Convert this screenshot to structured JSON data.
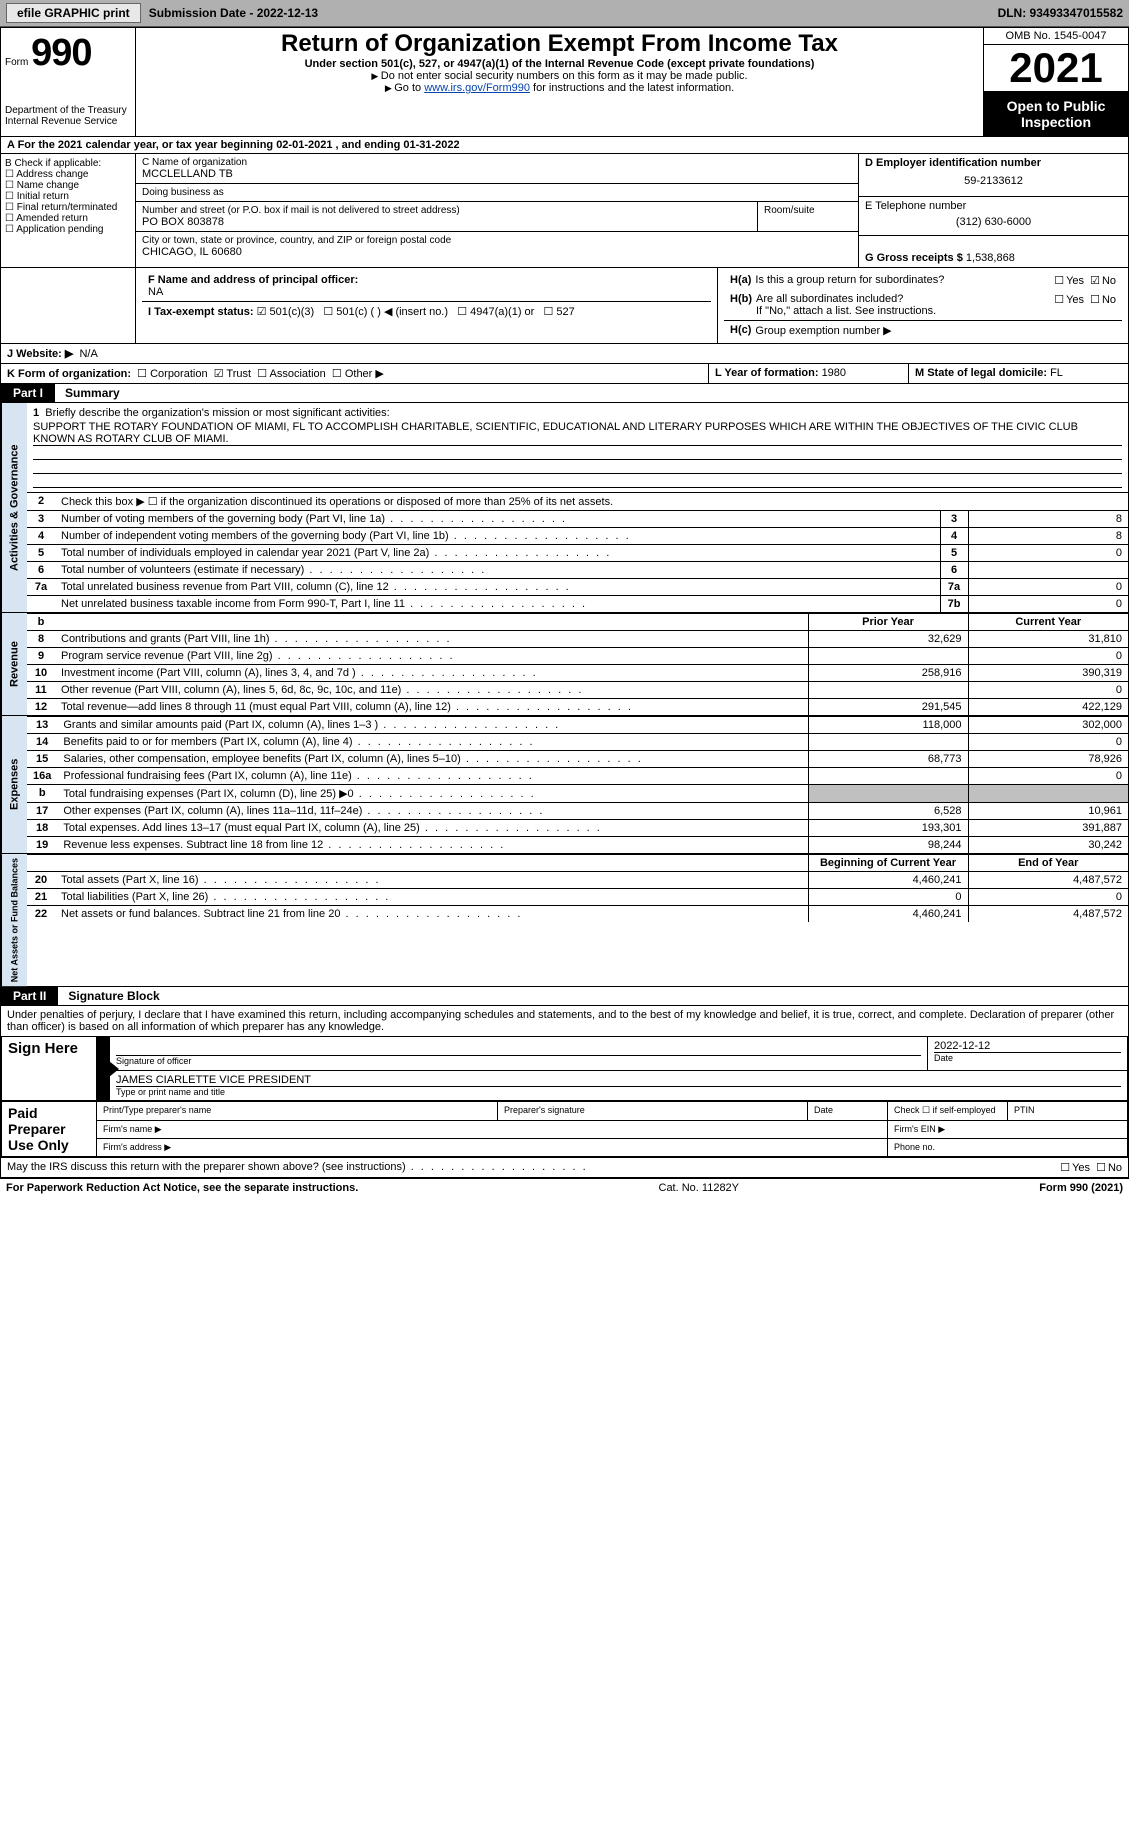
{
  "toolbar": {
    "button1": "efile GRAPHIC print",
    "sub_label": "Submission Date - 2022-12-13",
    "dln": "DLN: 93493347015582"
  },
  "form_header": {
    "form_word": "Form",
    "form_no": "990",
    "dept": "Department of the Treasury Internal Revenue Service",
    "title": "Return of Organization Exempt From Income Tax",
    "subtitle": "Under section 501(c), 527, or 4947(a)(1) of the Internal Revenue Code (except private foundations)",
    "warn1": "Do not enter social security numbers on this form as it may be made public.",
    "warn2_a": "Go to ",
    "warn2_link": "www.irs.gov/Form990",
    "warn2_b": " for instructions and the latest information.",
    "omb": "OMB No. 1545-0047",
    "year": "2021",
    "opi": "Open to Public Inspection"
  },
  "period": "A For the 2021 calendar year, or tax year beginning 02-01-2021    , and ending 01-31-2022",
  "section_b": {
    "title": "B Check if applicable:",
    "items": [
      "Address change",
      "Name change",
      "Initial return",
      "Final return/terminated",
      "Amended return",
      "Application pending"
    ]
  },
  "section_c": {
    "name_label": "C Name of organization",
    "name": "MCCLELLAND TB",
    "dba_label": "Doing business as",
    "dba": "",
    "addr_label": "Number and street (or P.O. box if mail is not delivered to street address)",
    "room_label": "Room/suite",
    "addr": "PO BOX 803878",
    "city_label": "City or town, state or province, country, and ZIP or foreign postal code",
    "city": "CHICAGO, IL  60680"
  },
  "section_d": {
    "label": "D Employer identification number",
    "value": "59-2133612"
  },
  "section_e": {
    "label": "E Telephone number",
    "value": "(312) 630-6000"
  },
  "section_g": {
    "label": "G Gross receipts $ ",
    "value": "1,538,868"
  },
  "section_f": {
    "label": "F Name and address of principal officer:",
    "value": "NA"
  },
  "section_h": {
    "ha": "Is this a group return for subordinates?",
    "hb": "Are all subordinates included?",
    "hb_note": "If \"No,\" attach a list. See instructions.",
    "hc": "Group exemption number ▶",
    "ha_answer_no": true
  },
  "row_i": {
    "label": "I    Tax-exempt status:",
    "opts": [
      "501(c)(3)",
      "501(c) (  ) ◀ (insert no.)",
      "4947(a)(1) or",
      "527"
    ]
  },
  "row_j": {
    "label": "J    Website: ▶",
    "value": "N/A"
  },
  "row_k": {
    "label": "K Form of organization:",
    "opts": [
      "Corporation",
      "Trust",
      "Association",
      "Other ▶"
    ]
  },
  "row_l": {
    "label": "L Year of formation: ",
    "value": "1980"
  },
  "row_m": {
    "label": "M State of legal domicile: ",
    "value": "FL"
  },
  "part1": {
    "header": "Part I",
    "title": "Summary",
    "mission_label": "Briefly describe the organization's mission or most significant activities:",
    "mission": "SUPPORT THE ROTARY FOUNDATION OF MIAMI, FL TO ACCOMPLISH CHARITABLE, SCIENTIFIC, EDUCATIONAL AND LITERARY PURPOSES WHICH ARE WITHIN THE OBJECTIVES OF THE CIVIC CLUB KNOWN AS ROTARY CLUB OF MIAMI.",
    "line2": "Check this box ▶ ☐  if the organization discontinued its operations or disposed of more than 25% of its net assets.",
    "gov_rows": [
      {
        "n": "3",
        "text": "Number of voting members of the governing body (Part VI, line 1a)",
        "box": "3",
        "val": "8"
      },
      {
        "n": "4",
        "text": "Number of independent voting members of the governing body (Part VI, line 1b)",
        "box": "4",
        "val": "8"
      },
      {
        "n": "5",
        "text": "Total number of individuals employed in calendar year 2021 (Part V, line 2a)",
        "box": "5",
        "val": "0"
      },
      {
        "n": "6",
        "text": "Total number of volunteers (estimate if necessary)",
        "box": "6",
        "val": ""
      },
      {
        "n": "7a",
        "text": "Total unrelated business revenue from Part VIII, column (C), line 12",
        "box": "7a",
        "val": "0"
      },
      {
        "n": "",
        "text": "Net unrelated business taxable income from Form 990-T, Part I, line 11",
        "box": "7b",
        "val": "0"
      }
    ],
    "col_py": "Prior Year",
    "col_cy": "Current Year",
    "rev_rows": [
      {
        "n": "8",
        "text": "Contributions and grants (Part VIII, line 1h)",
        "py": "32,629",
        "cy": "31,810"
      },
      {
        "n": "9",
        "text": "Program service revenue (Part VIII, line 2g)",
        "py": "",
        "cy": "0"
      },
      {
        "n": "10",
        "text": "Investment income (Part VIII, column (A), lines 3, 4, and 7d )",
        "py": "258,916",
        "cy": "390,319"
      },
      {
        "n": "11",
        "text": "Other revenue (Part VIII, column (A), lines 5, 6d, 8c, 9c, 10c, and 11e)",
        "py": "",
        "cy": "0"
      },
      {
        "n": "12",
        "text": "Total revenue—add lines 8 through 11 (must equal Part VIII, column (A), line 12)",
        "py": "291,545",
        "cy": "422,129"
      }
    ],
    "exp_rows": [
      {
        "n": "13",
        "text": "Grants and similar amounts paid (Part IX, column (A), lines 1–3 )",
        "py": "118,000",
        "cy": "302,000"
      },
      {
        "n": "14",
        "text": "Benefits paid to or for members (Part IX, column (A), line 4)",
        "py": "",
        "cy": "0"
      },
      {
        "n": "15",
        "text": "Salaries, other compensation, employee benefits (Part IX, column (A), lines 5–10)",
        "py": "68,773",
        "cy": "78,926"
      },
      {
        "n": "16a",
        "text": "Professional fundraising fees (Part IX, column (A), line 11e)",
        "py": "",
        "cy": "0"
      },
      {
        "n": "b",
        "text": "Total fundraising expenses (Part IX, column (D), line 25) ▶0",
        "py": "shade",
        "cy": "shade"
      },
      {
        "n": "17",
        "text": "Other expenses (Part IX, column (A), lines 11a–11d, 11f–24e)",
        "py": "6,528",
        "cy": "10,961"
      },
      {
        "n": "18",
        "text": "Total expenses. Add lines 13–17 (must equal Part IX, column (A), line 25)",
        "py": "193,301",
        "cy": "391,887"
      },
      {
        "n": "19",
        "text": "Revenue less expenses. Subtract line 18 from line 12",
        "py": "98,244",
        "cy": "30,242"
      }
    ],
    "col_bcy": "Beginning of Current Year",
    "col_eoy": "End of Year",
    "na_rows": [
      {
        "n": "20",
        "text": "Total assets (Part X, line 16)",
        "py": "4,460,241",
        "cy": "4,487,572"
      },
      {
        "n": "21",
        "text": "Total liabilities (Part X, line 26)",
        "py": "0",
        "cy": "0"
      },
      {
        "n": "22",
        "text": "Net assets or fund balances. Subtract line 21 from line 20",
        "py": "4,460,241",
        "cy": "4,487,572"
      }
    ],
    "vlabel_gov": "Activities & Governance",
    "vlabel_rev": "Revenue",
    "vlabel_exp": "Expenses",
    "vlabel_na": "Net Assets or Fund Balances"
  },
  "part2": {
    "header": "Part II",
    "title": "Signature Block",
    "declare": "Under penalties of perjury, I declare that I have examined this return, including accompanying schedules and statements, and to the best of my knowledge and belief, it is true, correct, and complete. Declaration of preparer (other than officer) is based on all information of which preparer has any knowledge.",
    "sign_here": "Sign Here",
    "sig_officer": "Signature of officer",
    "sig_date_lbl": "Date",
    "sig_date": "2022-12-12",
    "typed": "JAMES CIARLETTE  VICE PRESIDENT",
    "typed_lbl": "Type or print name and title",
    "paid": "Paid Preparer Use Only",
    "pp_name": "Print/Type preparer's name",
    "pp_sig": "Preparer's signature",
    "pp_date": "Date",
    "pp_check": "Check ☐ if self-employed",
    "pp_ptin": "PTIN",
    "firm_name": "Firm's name  ▶",
    "firm_ein": "Firm's EIN ▶",
    "firm_addr": "Firm's address ▶",
    "firm_phone": "Phone no."
  },
  "footer": {
    "discuss": "May the IRS discuss this return with the preparer shown above? (see instructions)",
    "pra": "For Paperwork Reduction Act Notice, see the separate instructions.",
    "cat": "Cat. No. 11282Y",
    "formref": "Form 990 (2021)"
  }
}
